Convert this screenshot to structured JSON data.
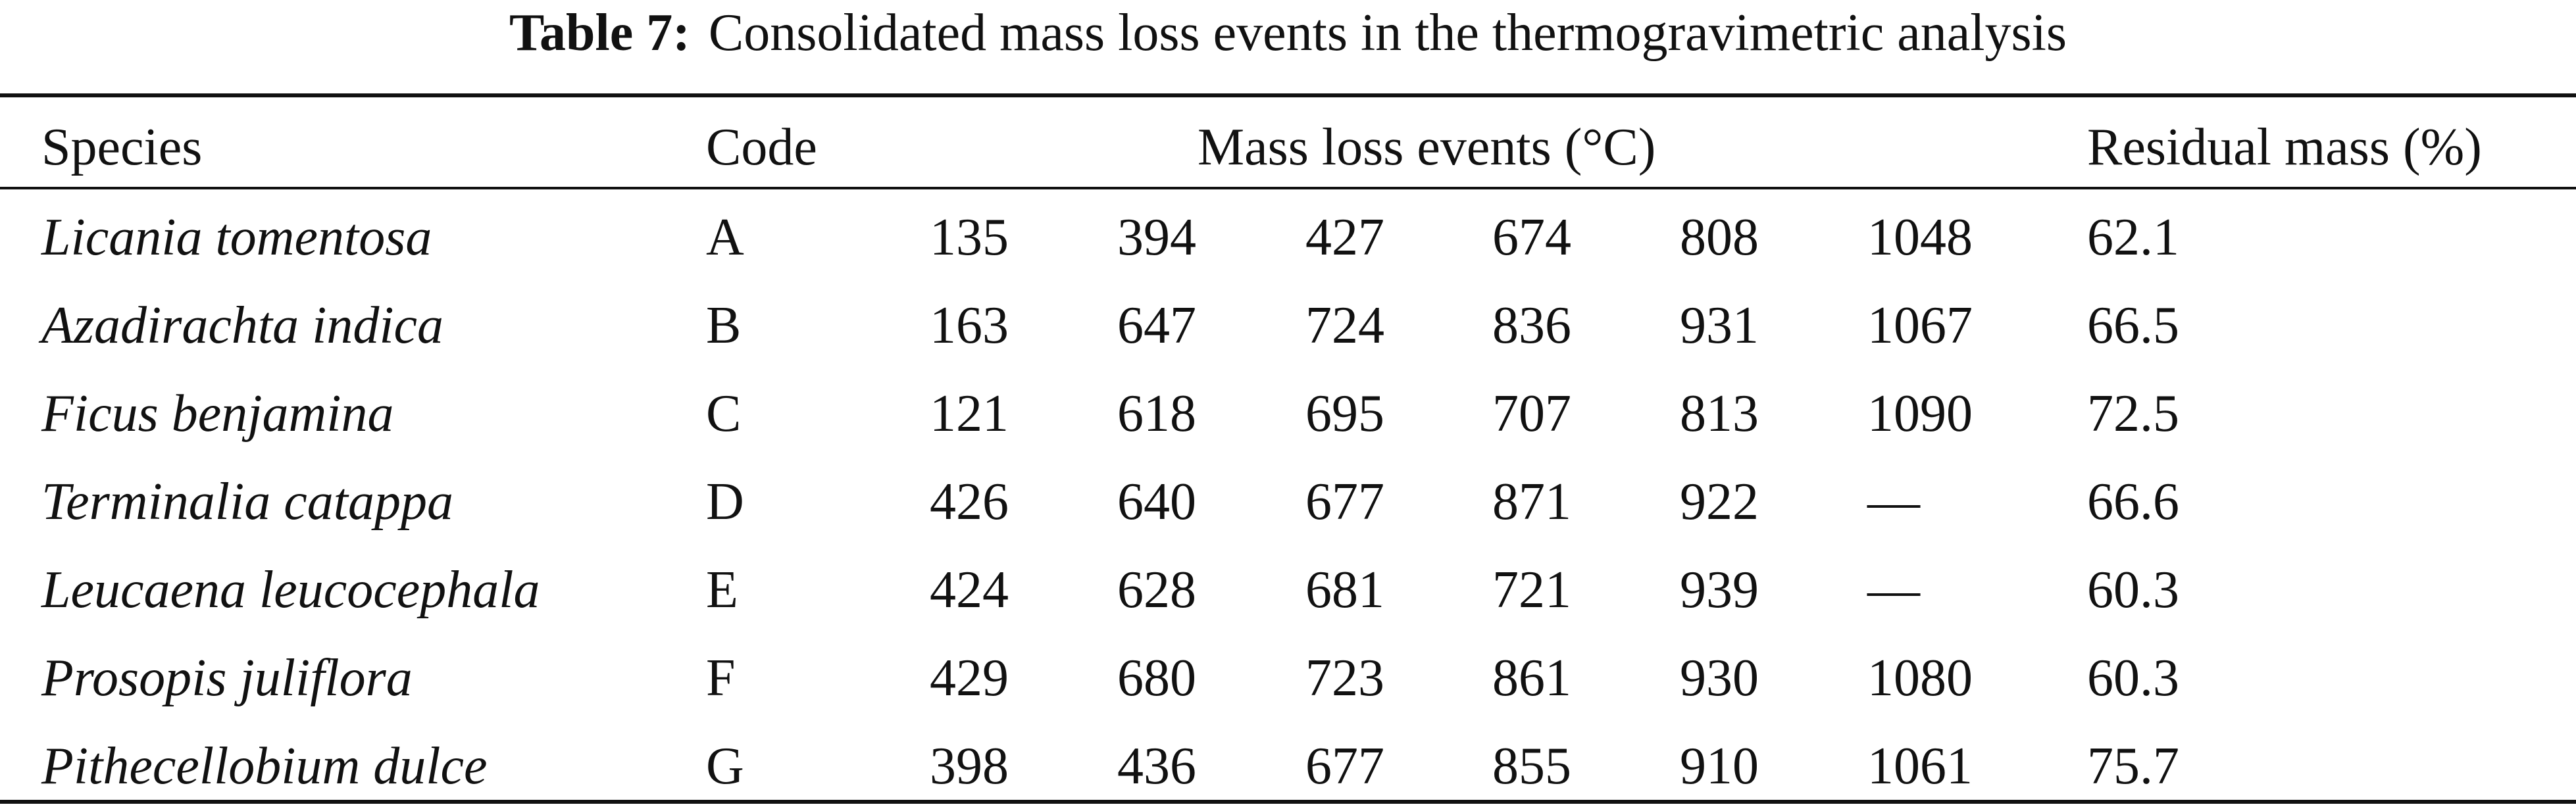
{
  "caption": {
    "label": "Table 7:",
    "text": "Consolidated mass loss events in the thermogravimetric analysis"
  },
  "header": {
    "species": "Species",
    "code": "Code",
    "events": "Mass loss events (°C)",
    "residual": "Residual mass (%)"
  },
  "rows": [
    {
      "species": "Licania tomentosa",
      "code": "A",
      "events": [
        "135",
        "394",
        "427",
        "674",
        "808",
        "1048"
      ],
      "residual": "62.1"
    },
    {
      "species": "Azadirachta indica",
      "code": "B",
      "events": [
        "163",
        "647",
        "724",
        "836",
        "931",
        "1067"
      ],
      "residual": "66.5"
    },
    {
      "species": "Ficus benjamina",
      "code": "C",
      "events": [
        "121",
        "618",
        "695",
        "707",
        "813",
        "1090"
      ],
      "residual": "72.5"
    },
    {
      "species": "Terminalia catappa",
      "code": "D",
      "events": [
        "426",
        "640",
        "677",
        "871",
        "922",
        "—"
      ],
      "residual": "66.6"
    },
    {
      "species": "Leucaena leucocephala",
      "code": "E",
      "events": [
        "424",
        "628",
        "681",
        "721",
        "939",
        "—"
      ],
      "residual": "60.3"
    },
    {
      "species": "Prosopis juliflora",
      "code": "F",
      "events": [
        "429",
        "680",
        "723",
        "861",
        "930",
        "1080"
      ],
      "residual": "60.3"
    },
    {
      "species": "Pithecellobium dulce",
      "code": "G",
      "events": [
        "398",
        "436",
        "677",
        "855",
        "910",
        "1061"
      ],
      "residual": "75.7"
    }
  ]
}
